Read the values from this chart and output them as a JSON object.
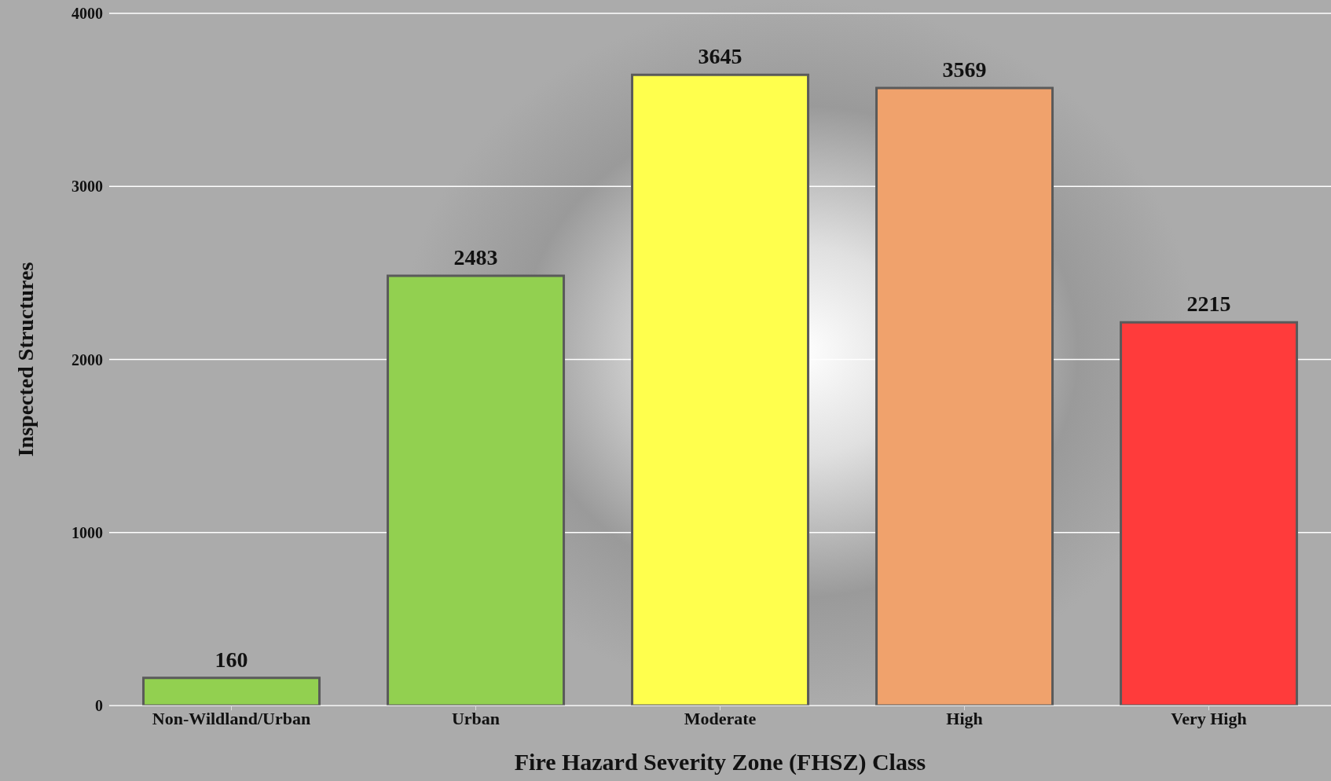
{
  "chart_data": {
    "type": "bar",
    "xlabel": "Fire Hazard Severity Zone (FHSZ) Class",
    "ylabel": "Inspected Structures",
    "categories": [
      "Non-Wildland/Urban",
      "Urban",
      "Moderate",
      "High",
      "Very High"
    ],
    "values": [
      160,
      2483,
      3645,
      3569,
      2215
    ],
    "colors": [
      "#92d050",
      "#92d050",
      "#ffff4d",
      "#f0a26c",
      "#ff3b3b"
    ],
    "ylim": [
      0,
      4000
    ],
    "yticks": [
      0,
      1000,
      2000,
      3000,
      4000
    ],
    "grid": "y",
    "data_labels": true
  }
}
